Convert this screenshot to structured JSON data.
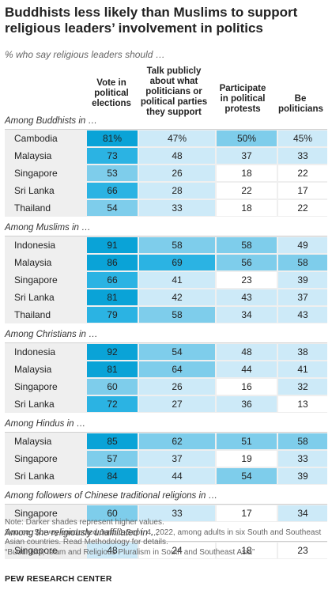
{
  "title": "Buddhists less likely than Muslims to support religious leaders’ involvement in politics",
  "subtitle": "% who say religious leaders should …",
  "columns": [
    "Vote in political elections",
    "Talk publicly about what politicians or political parties they support",
    "Participate in political protests",
    "Be politicians"
  ],
  "colors": {
    "lightest": "#ffffff",
    "light": "#cdeaf8",
    "medium": "#7ecdeb",
    "dark": "#2bb3e3",
    "darkest": "#0aa3d7",
    "group_bg": "#efefef"
  },
  "chart_data": {
    "type": "table",
    "note": "Darker shades represent higher values.",
    "groups": [
      {
        "label": "Among Buddhists in …",
        "rows": [
          {
            "name": "Cambodia",
            "values": [
              "81%",
              "47%",
              "50%",
              "45%"
            ]
          },
          {
            "name": "Malaysia",
            "values": [
              "73",
              "48",
              "37",
              "33"
            ]
          },
          {
            "name": "Singapore",
            "values": [
              "53",
              "26",
              "18",
              "22"
            ]
          },
          {
            "name": "Sri Lanka",
            "values": [
              "66",
              "28",
              "22",
              "17"
            ]
          },
          {
            "name": "Thailand",
            "values": [
              "54",
              "33",
              "18",
              "22"
            ]
          }
        ]
      },
      {
        "label": "Among Muslims in …",
        "rows": [
          {
            "name": "Indonesia",
            "values": [
              "91",
              "58",
              "58",
              "49"
            ]
          },
          {
            "name": "Malaysia",
            "values": [
              "86",
              "69",
              "56",
              "58"
            ]
          },
          {
            "name": "Singapore",
            "values": [
              "66",
              "41",
              "23",
              "39"
            ]
          },
          {
            "name": "Sri Lanka",
            "values": [
              "81",
              "42",
              "43",
              "37"
            ]
          },
          {
            "name": "Thailand",
            "values": [
              "79",
              "58",
              "34",
              "43"
            ]
          }
        ]
      },
      {
        "label": "Among Christians in …",
        "rows": [
          {
            "name": "Indonesia",
            "values": [
              "92",
              "54",
              "48",
              "38"
            ]
          },
          {
            "name": "Malaysia",
            "values": [
              "81",
              "64",
              "44",
              "41"
            ]
          },
          {
            "name": "Singapore",
            "values": [
              "60",
              "26",
              "16",
              "32"
            ]
          },
          {
            "name": "Sri Lanka",
            "values": [
              "72",
              "27",
              "36",
              "13"
            ]
          }
        ]
      },
      {
        "label": "Among Hindus in …",
        "rows": [
          {
            "name": "Malaysia",
            "values": [
              "85",
              "62",
              "51",
              "58"
            ]
          },
          {
            "name": "Singapore",
            "values": [
              "57",
              "37",
              "19",
              "33"
            ]
          },
          {
            "name": "Sri Lanka",
            "values": [
              "84",
              "44",
              "54",
              "39"
            ]
          }
        ]
      },
      {
        "label": "Among followers of Chinese traditional religions in …",
        "rows": [
          {
            "name": "Singapore",
            "values": [
              "60",
              "33",
              "17",
              "34"
            ]
          }
        ]
      },
      {
        "label": "Among the religiously unaffiliated in …",
        "rows": [
          {
            "name": "Singapore",
            "values": [
              "48",
              "24",
              "18",
              "23"
            ]
          }
        ]
      }
    ]
  },
  "footer": {
    "note": "Note: Darker shades represent higher values.",
    "source": "Source: Survey conducted June 1-Sept. 4, 2022, among adults in six South and Southeast Asian countries. Read Methodology for details.",
    "report": "“Buddhism, Islam and Religious Pluralism in South and Southeast Asia”",
    "brand": "PEW RESEARCH CENTER"
  }
}
